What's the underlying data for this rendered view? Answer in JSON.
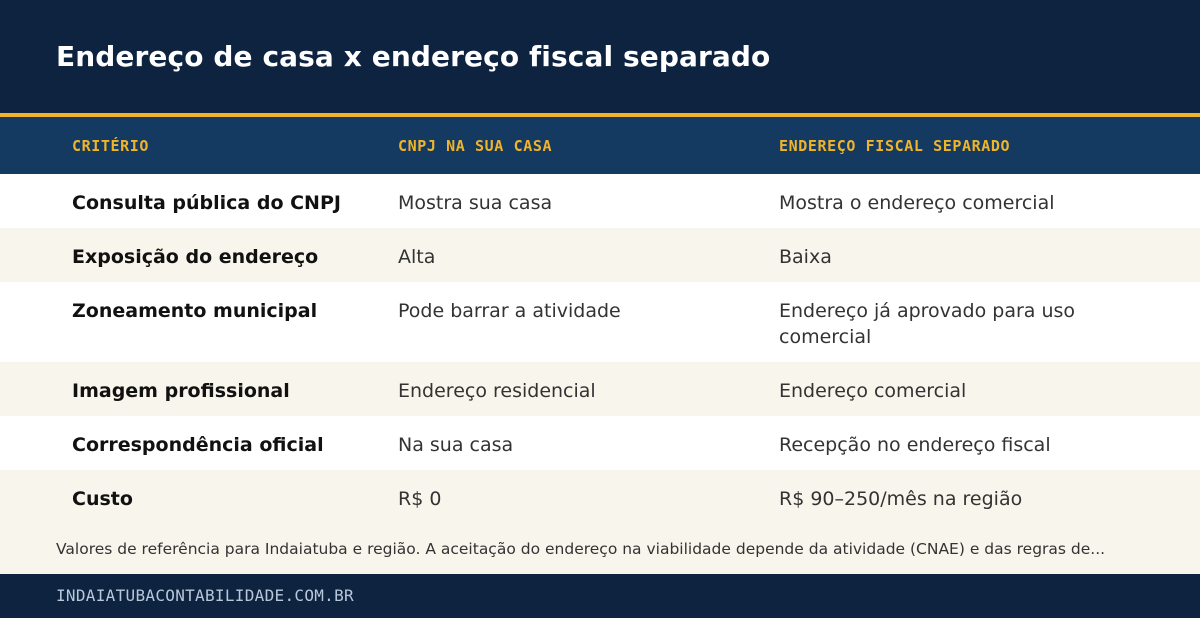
{
  "header": {
    "title": "Endereço de casa x endereço fiscal separado"
  },
  "table": {
    "columns": [
      "CRITÉRIO",
      "CNPJ NA SUA CASA",
      "ENDEREÇO FISCAL SEPARADO"
    ],
    "rows": [
      [
        "Consulta pública do CNPJ",
        "Mostra sua casa",
        "Mostra o endereço comercial"
      ],
      [
        "Exposição do endereço",
        "Alta",
        "Baixa"
      ],
      [
        "Zoneamento municipal",
        "Pode barrar a atividade",
        "Endereço já aprovado para uso comercial"
      ],
      [
        "Imagem profissional",
        "Endereço residencial",
        "Endereço comercial"
      ],
      [
        "Correspondência oficial",
        "Na sua casa",
        "Recepção no endereço fiscal"
      ],
      [
        "Custo",
        "R$ 0",
        "R$ 90–250/mês na região"
      ]
    ]
  },
  "note": "Valores de referência para Indaiatuba e região. A aceitação do endereço na viabilidade depende da atividade (CNAE) e das regras de...",
  "footer": {
    "site": "INDAIATUBACONTABILIDADE.COM.BR"
  },
  "colors": {
    "navy": "#0d2340",
    "header_row": "#143a62",
    "accent": "#f0b429",
    "stripe": "#f8f5ec"
  }
}
